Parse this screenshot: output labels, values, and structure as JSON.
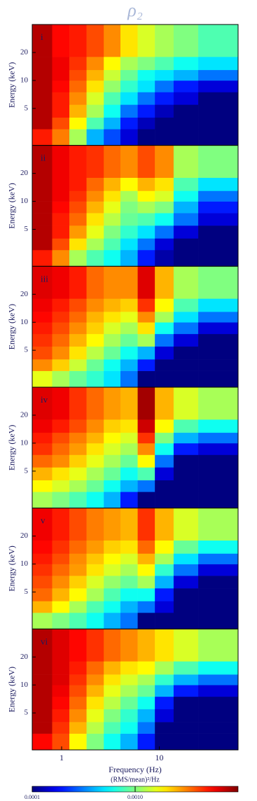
{
  "chart_data": {
    "type": "heatmap",
    "title": "ρ₂",
    "xlabel": "Frequency (Hz)",
    "ylabel": "Energy (keV)",
    "xlim": [
      0.5,
      64
    ],
    "xticks": [
      1,
      10
    ],
    "xlog": true,
    "ylim": [
      2,
      40
    ],
    "yticks": [
      5,
      10,
      20
    ],
    "ylog": true,
    "frequency_bins": [
      0.5,
      0.8,
      1.2,
      1.8,
      2.7,
      4,
      6,
      9,
      14,
      25,
      64
    ],
    "energy_bins": [
      2,
      3,
      4,
      5.5,
      7.5,
      10,
      13,
      18,
      40
    ],
    "colormap": "jet",
    "color_label": "(RMS/mean)²/Hz",
    "clim": [
      0.0001,
      0.01
    ],
    "clog": true,
    "cticks": [
      0.0001,
      {
        "value": 0.001,
        "label": "0.0010"
      }
    ],
    "panels": [
      {
        "label": "i",
        "z": [
          [
            0.005,
            0.0032,
            0.0012,
            0.0004,
            0.00025,
            0.00015,
            0.0001,
            0.0001,
            0.0001,
            0.0001
          ],
          [
            0.0079,
            0.004,
            0.0018,
            0.0008,
            0.0004,
            0.0002,
            0.00013,
            0.0001,
            0.0001,
            0.0001
          ],
          [
            0.0079,
            0.005,
            0.0025,
            0.0012,
            0.0006,
            0.0003,
            0.0002,
            0.00013,
            0.0001,
            0.0001
          ],
          [
            0.0079,
            0.005,
            0.003,
            0.0015,
            0.0008,
            0.0005,
            0.0003,
            0.0002,
            0.00015,
            0.0001
          ],
          [
            0.0079,
            0.0055,
            0.0035,
            0.002,
            0.0011,
            0.0007,
            0.0005,
            0.0003,
            0.0002,
            0.00015
          ],
          [
            0.0079,
            0.006,
            0.004,
            0.0025,
            0.0014,
            0.0009,
            0.0006,
            0.0005,
            0.0004,
            0.0003
          ],
          [
            0.0079,
            0.006,
            0.0045,
            0.003,
            0.0018,
            0.0012,
            0.001,
            0.0008,
            0.0006,
            0.0005
          ],
          [
            0.0079,
            0.0055,
            0.005,
            0.004,
            0.003,
            0.002,
            0.0015,
            0.0012,
            0.001,
            0.0008
          ]
        ]
      },
      {
        "label": "ii",
        "z": [
          [
            0.005,
            0.003,
            0.0012,
            0.0008,
            0.0006,
            0.0004,
            0.0002,
            0.00012,
            0.0001,
            0.0001
          ],
          [
            0.0079,
            0.004,
            0.002,
            0.0012,
            0.0008,
            0.0005,
            0.0003,
            0.00015,
            0.0001,
            0.0001
          ],
          [
            0.0079,
            0.005,
            0.0028,
            0.0016,
            0.001,
            0.0007,
            0.0005,
            0.0003,
            0.00015,
            0.0001
          ],
          [
            0.0079,
            0.005,
            0.0035,
            0.002,
            0.0013,
            0.0009,
            0.0008,
            0.0006,
            0.0003,
            0.00015
          ],
          [
            0.0079,
            0.0055,
            0.004,
            0.0025,
            0.0016,
            0.001,
            0.0012,
            0.001,
            0.0004,
            0.0002
          ],
          [
            0.0079,
            0.006,
            0.0045,
            0.003,
            0.002,
            0.0012,
            0.0018,
            0.0015,
            0.0006,
            0.0003
          ],
          [
            0.0079,
            0.006,
            0.005,
            0.0035,
            0.0025,
            0.0018,
            0.0025,
            0.002,
            0.0008,
            0.0005
          ],
          [
            0.0079,
            0.006,
            0.005,
            0.0045,
            0.0035,
            0.003,
            0.004,
            0.003,
            0.0012,
            0.001
          ]
        ]
      },
      {
        "label": "iii",
        "z": [
          [
            0.0016,
            0.0012,
            0.0009,
            0.0007,
            0.0005,
            0.0003,
            0.0001,
            0.0001,
            0.0001,
            0.0001
          ],
          [
            0.003,
            0.0022,
            0.0014,
            0.0009,
            0.0006,
            0.0004,
            0.0002,
            0.0001,
            0.0001,
            0.0001
          ],
          [
            0.004,
            0.003,
            0.002,
            0.0013,
            0.0009,
            0.0006,
            0.0004,
            0.00015,
            0.0001,
            0.0001
          ],
          [
            0.0045,
            0.0035,
            0.0025,
            0.0018,
            0.0012,
            0.0009,
            0.0012,
            0.0003,
            0.00015,
            0.0001
          ],
          [
            0.005,
            0.004,
            0.003,
            0.0022,
            0.0015,
            0.0012,
            0.002,
            0.0006,
            0.0003,
            0.00015
          ],
          [
            0.0055,
            0.0045,
            0.0035,
            0.0025,
            0.002,
            0.0016,
            0.003,
            0.0012,
            0.0005,
            0.0003
          ],
          [
            0.006,
            0.005,
            0.004,
            0.003,
            0.0025,
            0.0022,
            0.0045,
            0.0018,
            0.0008,
            0.0005
          ],
          [
            0.0065,
            0.006,
            0.005,
            0.0035,
            0.003,
            0.003,
            0.0065,
            0.0025,
            0.0012,
            0.001
          ]
        ]
      },
      {
        "label": "iv",
        "z": [
          [
            0.0012,
            0.001,
            0.0008,
            0.0006,
            0.0004,
            0.0002,
            0.0001,
            0.0001,
            0.0001,
            0.0001
          ],
          [
            0.0018,
            0.0015,
            0.0012,
            0.0009,
            0.0006,
            0.0004,
            0.0003,
            0.0001,
            0.0001,
            0.0001
          ],
          [
            0.0025,
            0.002,
            0.0016,
            0.0012,
            0.0009,
            0.0006,
            0.0008,
            0.00015,
            0.0001,
            0.0001
          ],
          [
            0.0035,
            0.003,
            0.0022,
            0.0016,
            0.0012,
            0.0009,
            0.0018,
            0.0003,
            0.0001,
            0.0001
          ],
          [
            0.0045,
            0.0035,
            0.0028,
            0.002,
            0.0015,
            0.0012,
            0.003,
            0.0006,
            0.0002,
            0.00015
          ],
          [
            0.005,
            0.004,
            0.0032,
            0.0025,
            0.0018,
            0.0015,
            0.0045,
            0.001,
            0.0004,
            0.0003
          ],
          [
            0.006,
            0.005,
            0.004,
            0.003,
            0.0022,
            0.002,
            0.007,
            0.0018,
            0.0008,
            0.0006
          ],
          [
            0.0065,
            0.006,
            0.0045,
            0.0035,
            0.0028,
            0.0025,
            0.0085,
            0.0025,
            0.0015,
            0.0012
          ]
        ]
      },
      {
        "label": "v",
        "z": [
          [
            0.0012,
            0.001,
            0.0008,
            0.0006,
            0.0004,
            0.0003,
            0.0001,
            0.0001,
            0.0001,
            0.0001
          ],
          [
            0.0025,
            0.0018,
            0.0012,
            0.0008,
            0.0006,
            0.0004,
            0.0003,
            0.00015,
            0.0001,
            0.0001
          ],
          [
            0.0035,
            0.0025,
            0.0018,
            0.0012,
            0.0008,
            0.0006,
            0.0006,
            0.0002,
            0.0001,
            0.0001
          ],
          [
            0.004,
            0.003,
            0.0022,
            0.0015,
            0.0011,
            0.0009,
            0.0012,
            0.0004,
            0.00015,
            0.0001
          ],
          [
            0.0045,
            0.0035,
            0.0028,
            0.002,
            0.0015,
            0.0012,
            0.0018,
            0.0007,
            0.0003,
            0.00015
          ],
          [
            0.005,
            0.004,
            0.003,
            0.0023,
            0.0018,
            0.0015,
            0.0025,
            0.0012,
            0.0005,
            0.0003
          ],
          [
            0.0055,
            0.0045,
            0.0035,
            0.0028,
            0.0022,
            0.002,
            0.0035,
            0.0018,
            0.0009,
            0.0006
          ],
          [
            0.006,
            0.005,
            0.004,
            0.0032,
            0.0028,
            0.0025,
            0.0045,
            0.0025,
            0.0015,
            0.0012
          ]
        ]
      },
      {
        "label": "vi",
        "z": [
          [
            0.0055,
            0.004,
            0.0018,
            0.001,
            0.0006,
            0.0004,
            0.0002,
            0.0001,
            0.0001,
            0.0001
          ],
          [
            0.0079,
            0.0045,
            0.0025,
            0.0013,
            0.0008,
            0.0006,
            0.0003,
            0.0001,
            0.0001,
            0.0001
          ],
          [
            0.0079,
            0.005,
            0.003,
            0.0016,
            0.001,
            0.0007,
            0.0004,
            0.00015,
            0.0001,
            0.0001
          ],
          [
            0.0079,
            0.0055,
            0.0035,
            0.002,
            0.0013,
            0.0009,
            0.0006,
            0.0002,
            0.0001,
            0.0001
          ],
          [
            0.0079,
            0.006,
            0.004,
            0.0025,
            0.0016,
            0.0012,
            0.0009,
            0.0004,
            0.0002,
            0.00015
          ],
          [
            0.0079,
            0.0065,
            0.0045,
            0.003,
            0.002,
            0.0015,
            0.0012,
            0.0007,
            0.0004,
            0.0003
          ],
          [
            0.0079,
            0.0065,
            0.005,
            0.0035,
            0.0025,
            0.002,
            0.0018,
            0.0012,
            0.0008,
            0.0006
          ],
          [
            0.0079,
            0.0065,
            0.0055,
            0.0045,
            0.0035,
            0.003,
            0.0025,
            0.002,
            0.0015,
            0.0012
          ]
        ]
      }
    ]
  }
}
